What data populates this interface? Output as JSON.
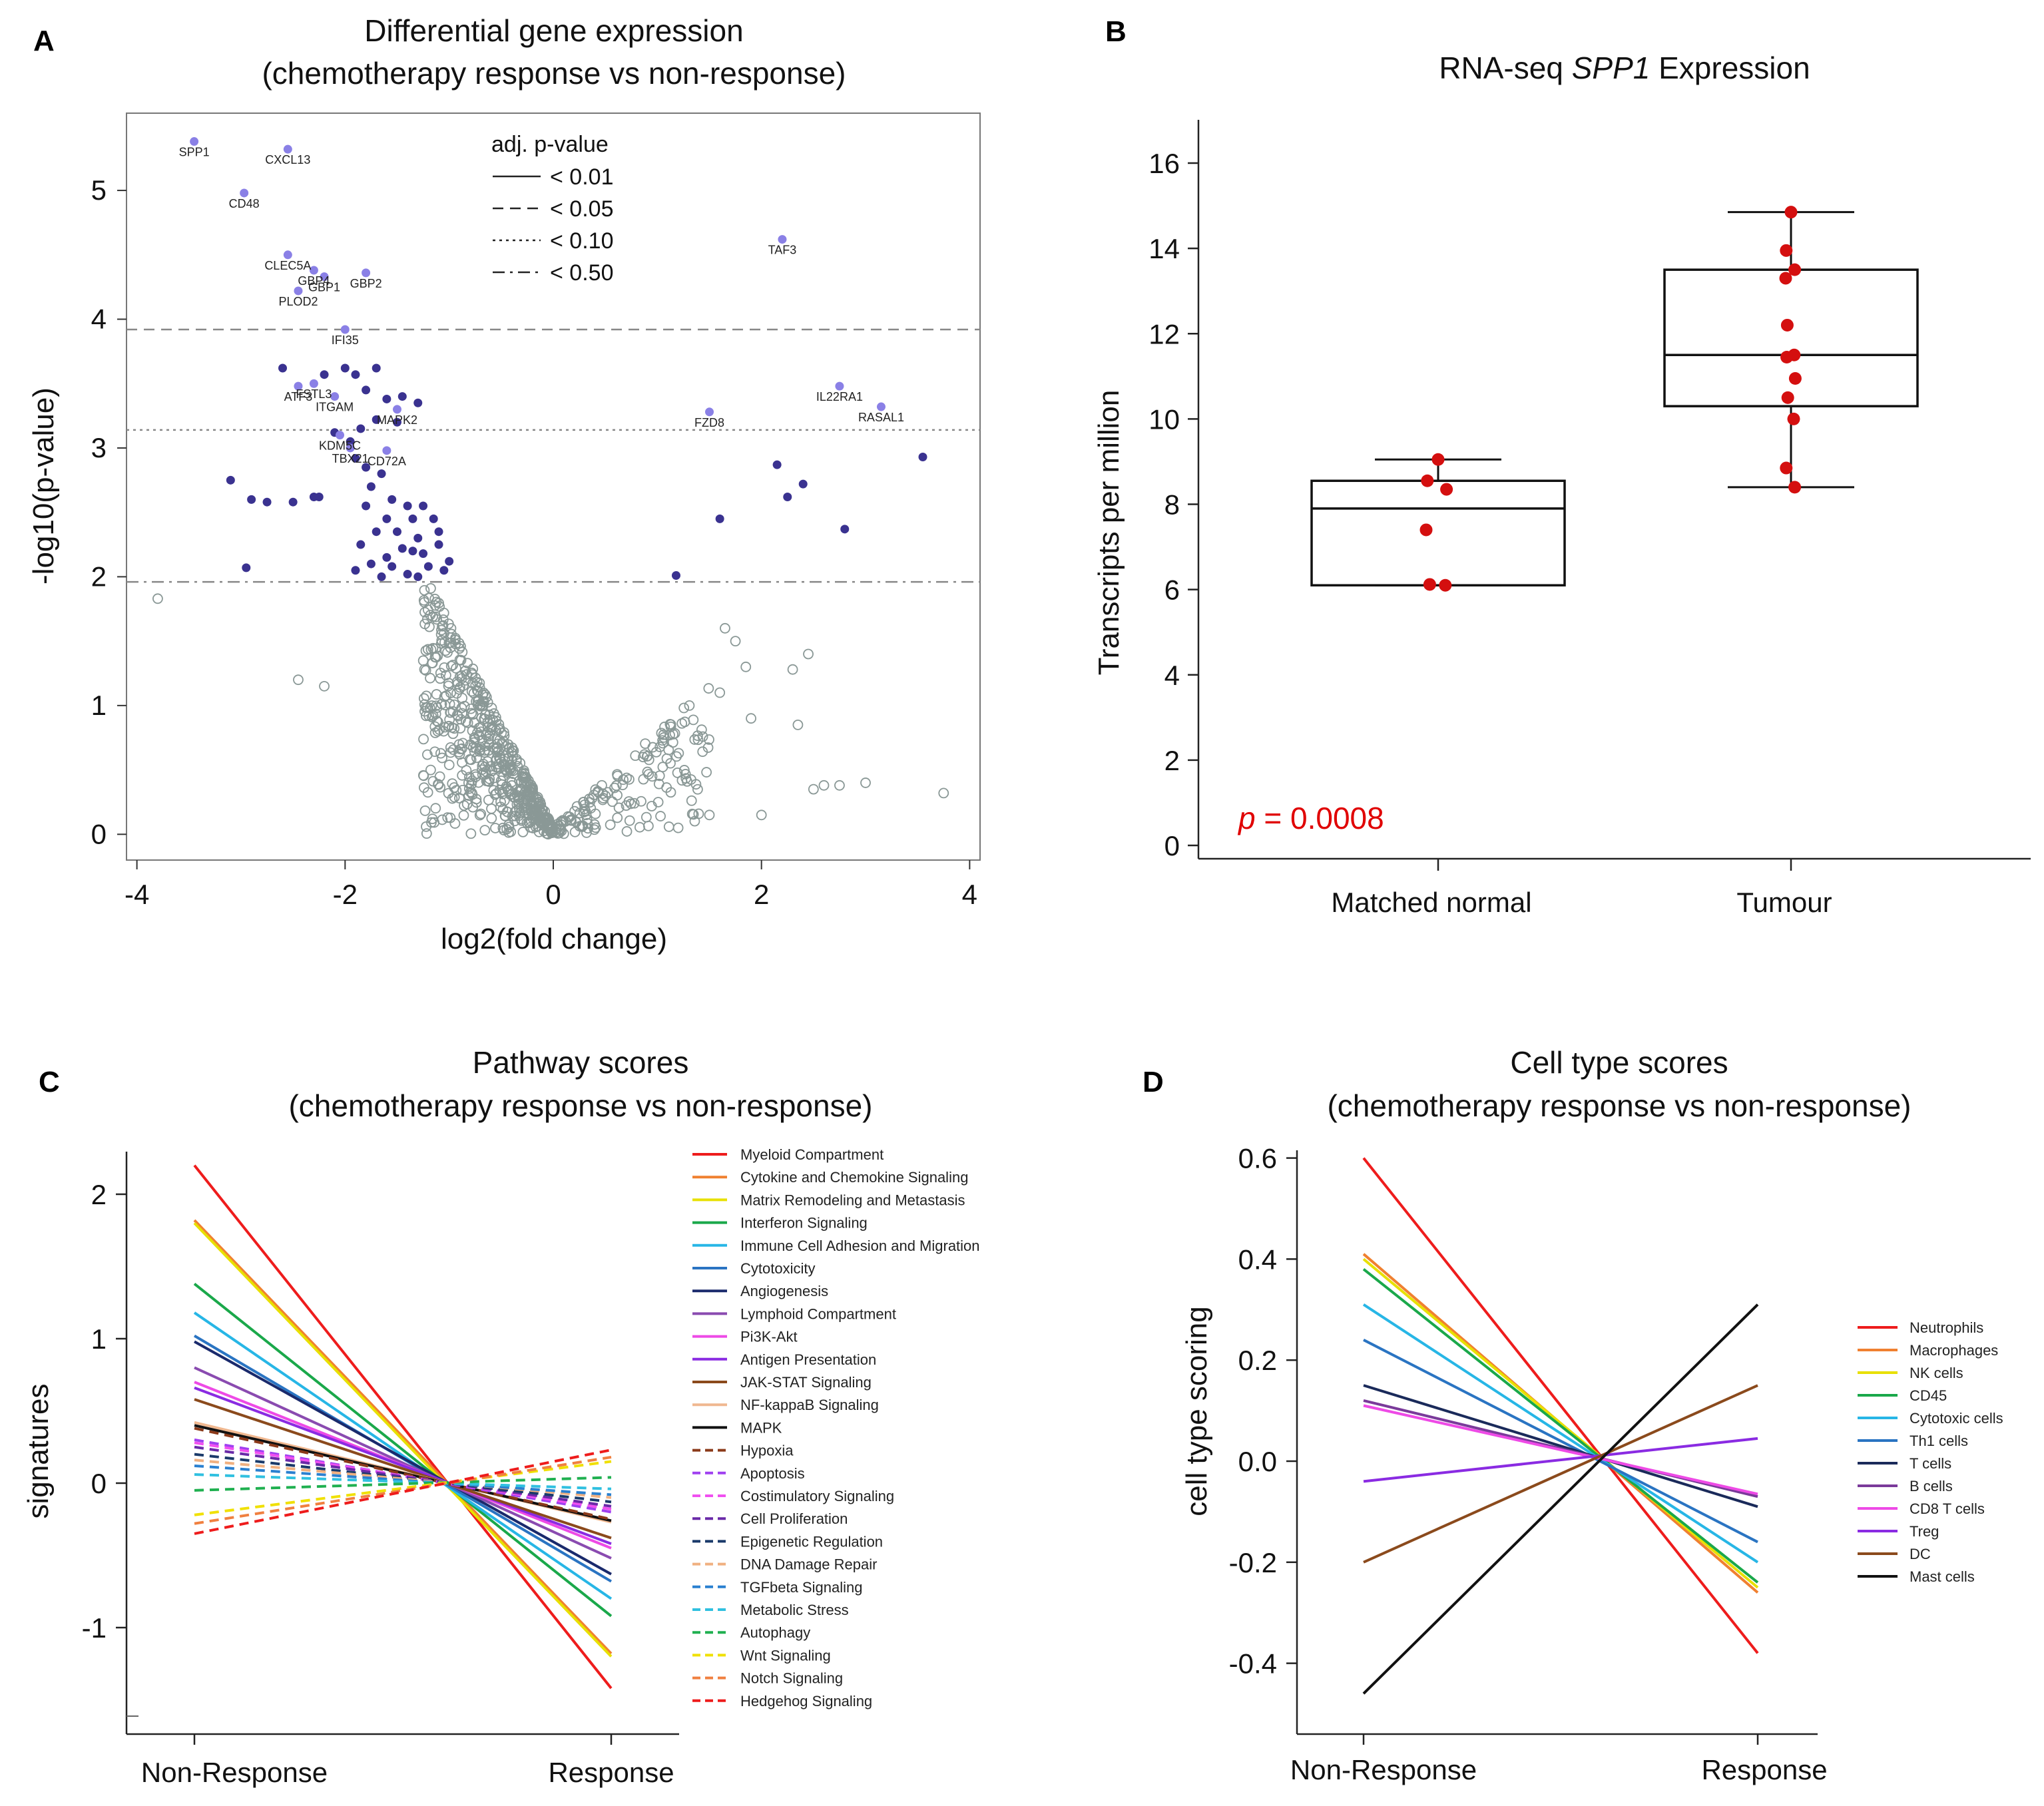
{
  "colors": {
    "sig_point": "#3a3290",
    "label_point": "#8a80e6",
    "nonsig_point": "#8a9896",
    "box_dot": "#d40f0f",
    "pvalue_text": "#e00000"
  },
  "chart_data": [
    {
      "id": "A",
      "type": "scatter",
      "panel_letter": "A",
      "title": "Differential gene expression",
      "subtitle": "(chemotherapy  response vs non-response)",
      "xlabel": "log2(fold change)",
      "ylabel": "-log10(p-value)",
      "xlim": [
        -4.1,
        4.1
      ],
      "ylim": [
        -0.2,
        5.6
      ],
      "xticks": [
        -4,
        -2,
        0,
        2,
        4
      ],
      "yticks": [
        0,
        1,
        2,
        3,
        4,
        5
      ],
      "legend_title": "adj. p-value",
      "thresholds": [
        {
          "label": "< 0.01",
          "y": null,
          "dash": "solid"
        },
        {
          "label": "< 0.05",
          "y": 3.92,
          "dash": "dashed"
        },
        {
          "label": "< 0.10",
          "y": 3.14,
          "dash": "dotted"
        },
        {
          "label": "< 0.50",
          "y": 1.96,
          "dash": "dashdot"
        }
      ],
      "labeled_genes": [
        {
          "name": "SPP1",
          "x": -3.45,
          "y": 5.38
        },
        {
          "name": "CXCL13",
          "x": -2.55,
          "y": 5.32
        },
        {
          "name": "CD48",
          "x": -2.97,
          "y": 4.98
        },
        {
          "name": "TAF3",
          "x": 2.2,
          "y": 4.62
        },
        {
          "name": "CLEC5A",
          "x": -2.55,
          "y": 4.5
        },
        {
          "name": "GBP4",
          "x": -2.3,
          "y": 4.38
        },
        {
          "name": "GBP1",
          "x": -2.2,
          "y": 4.33
        },
        {
          "name": "GBP2",
          "x": -1.8,
          "y": 4.36
        },
        {
          "name": "PLOD2",
          "x": -2.45,
          "y": 4.22
        },
        {
          "name": "IFI35",
          "x": -2.0,
          "y": 3.92
        },
        {
          "name": "ATF3",
          "x": -2.45,
          "y": 3.48
        },
        {
          "name": "FSTL3",
          "x": -2.3,
          "y": 3.5
        },
        {
          "name": "ITGAM",
          "x": -2.1,
          "y": 3.4
        },
        {
          "name": "MAPK2",
          "x": -1.5,
          "y": 3.3
        },
        {
          "name": "IL22RA1",
          "x": 2.75,
          "y": 3.48
        },
        {
          "name": "RASAL1",
          "x": 3.15,
          "y": 3.32
        },
        {
          "name": "FZD8",
          "x": 1.5,
          "y": 3.28
        },
        {
          "name": "KDM5C",
          "x": -2.05,
          "y": 3.1
        },
        {
          "name": "TBX21",
          "x": -1.95,
          "y": 3.0
        },
        {
          "name": "CD72A",
          "x": -1.6,
          "y": 2.98
        }
      ],
      "significant_points": [
        {
          "x": -3.1,
          "y": 2.75
        },
        {
          "x": -2.9,
          "y": 2.6
        },
        {
          "x": -2.75,
          "y": 2.58
        },
        {
          "x": -2.5,
          "y": 2.58
        },
        {
          "x": -2.3,
          "y": 2.62
        },
        {
          "x": -2.25,
          "y": 2.62
        },
        {
          "x": -2.95,
          "y": 2.07
        },
        {
          "x": -2.6,
          "y": 3.62
        },
        {
          "x": -2.2,
          "y": 3.57
        },
        {
          "x": -2.0,
          "y": 3.62
        },
        {
          "x": -1.9,
          "y": 3.57
        },
        {
          "x": -1.7,
          "y": 3.62
        },
        {
          "x": -1.8,
          "y": 3.45
        },
        {
          "x": -1.6,
          "y": 3.38
        },
        {
          "x": -1.45,
          "y": 3.4
        },
        {
          "x": -1.3,
          "y": 3.35
        },
        {
          "x": -1.7,
          "y": 3.22
        },
        {
          "x": -1.5,
          "y": 3.2
        },
        {
          "x": -1.9,
          "y": 2.92
        },
        {
          "x": -1.8,
          "y": 2.85
        },
        {
          "x": -1.65,
          "y": 2.8
        },
        {
          "x": -1.75,
          "y": 2.7
        },
        {
          "x": -1.55,
          "y": 2.6
        },
        {
          "x": -1.4,
          "y": 2.55
        },
        {
          "x": -1.25,
          "y": 2.55
        },
        {
          "x": -1.8,
          "y": 2.55
        },
        {
          "x": -1.6,
          "y": 2.45
        },
        {
          "x": -1.35,
          "y": 2.45
        },
        {
          "x": -1.15,
          "y": 2.45
        },
        {
          "x": -1.7,
          "y": 2.35
        },
        {
          "x": -1.5,
          "y": 2.35
        },
        {
          "x": -1.3,
          "y": 2.3
        },
        {
          "x": -1.1,
          "y": 2.35
        },
        {
          "x": -1.85,
          "y": 2.25
        },
        {
          "x": -1.45,
          "y": 2.22
        },
        {
          "x": -1.35,
          "y": 2.2
        },
        {
          "x": -1.25,
          "y": 2.18
        },
        {
          "x": -1.6,
          "y": 2.15
        },
        {
          "x": -1.75,
          "y": 2.1
        },
        {
          "x": -1.55,
          "y": 2.08
        },
        {
          "x": -1.2,
          "y": 2.08
        },
        {
          "x": -1.05,
          "y": 2.05
        },
        {
          "x": -1.9,
          "y": 2.05
        },
        {
          "x": -1.4,
          "y": 2.02
        },
        {
          "x": -1.65,
          "y": 2.0
        },
        {
          "x": -1.3,
          "y": 2.0
        },
        {
          "x": -1.0,
          "y": 2.12
        },
        {
          "x": -1.1,
          "y": 2.25
        },
        {
          "x": -1.95,
          "y": 3.05
        },
        {
          "x": -2.1,
          "y": 3.12
        },
        {
          "x": -1.85,
          "y": 3.15
        },
        {
          "x": 2.15,
          "y": 2.87
        },
        {
          "x": 2.25,
          "y": 2.62
        },
        {
          "x": 2.4,
          "y": 2.72
        },
        {
          "x": 3.55,
          "y": 2.93
        },
        {
          "x": 2.8,
          "y": 2.37
        },
        {
          "x": 1.6,
          "y": 2.45
        },
        {
          "x": 1.18,
          "y": 2.01
        }
      ],
      "nonsignificant_summary": "Grey open circles form the volcano base from (-1.2, 1.9) down to (0, 0) and up to (1.5, 1.1); outliers at (-3.8, 1.83), (-2.45, 1.2), (3.75, 0.32)"
    },
    {
      "id": "B",
      "type": "box",
      "panel_letter": "B",
      "title_prefix": "RNA-seq ",
      "title_gene": "SPP1",
      "title_suffix": " Expression",
      "ylabel": "Transcripts per million",
      "ylim": [
        0,
        16.5
      ],
      "yticks": [
        0,
        2,
        4,
        6,
        8,
        10,
        12,
        14,
        16
      ],
      "categories": [
        "Matched normal",
        "Tumour"
      ],
      "boxes": [
        {
          "name": "Matched normal",
          "min": 6.1,
          "q1": 6.1,
          "median": 7.9,
          "q3": 8.55,
          "max": 9.05,
          "points": [
            9.05,
            8.55,
            8.35,
            7.4,
            6.12,
            6.1
          ]
        },
        {
          "name": "Tumour",
          "min": 8.4,
          "q1": 10.3,
          "median": 11.5,
          "q3": 13.5,
          "max": 14.85,
          "points": [
            14.85,
            13.95,
            13.5,
            13.3,
            12.2,
            11.5,
            11.45,
            10.95,
            10.5,
            10.0,
            8.85,
            8.4
          ]
        }
      ],
      "pvalue_label": "p",
      "pvalue_text": " = 0.0008"
    },
    {
      "id": "C",
      "type": "line",
      "panel_letter": "C",
      "title": "Pathway scores",
      "subtitle": "(chemotherapy  response vs non-response)",
      "ylabel": "signatures",
      "categories": [
        "Non-Response",
        "Response"
      ],
      "ylim": [
        -1.65,
        2.3
      ],
      "yticks": [
        -1,
        0,
        1,
        2
      ],
      "series": [
        {
          "name": "Myeloid Compartment",
          "color": "#ee1c1c",
          "dash": "solid",
          "values": [
            2.2,
            -1.42
          ]
        },
        {
          "name": "Cytokine and Chemokine Signaling",
          "color": "#f08030",
          "dash": "solid",
          "values": [
            1.82,
            -1.18
          ]
        },
        {
          "name": "Matrix Remodeling and Metastasis",
          "color": "#e8e000",
          "dash": "solid",
          "values": [
            1.8,
            -1.2
          ]
        },
        {
          "name": "Interferon Signaling",
          "color": "#1aa84a",
          "dash": "solid",
          "values": [
            1.38,
            -0.92
          ]
        },
        {
          "name": "Immune Cell Adhesion and Migration",
          "color": "#27b6e6",
          "dash": "solid",
          "values": [
            1.18,
            -0.8
          ]
        },
        {
          "name": "Cytotoxicity",
          "color": "#2a74c2",
          "dash": "solid",
          "values": [
            1.02,
            -0.68
          ]
        },
        {
          "name": "Angiogenesis",
          "color": "#1a2a6c",
          "dash": "solid",
          "values": [
            0.98,
            -0.63
          ]
        },
        {
          "name": "Lymphoid Compartment",
          "color": "#8a4bb0",
          "dash": "solid",
          "values": [
            0.8,
            -0.52
          ]
        },
        {
          "name": "Pi3K-Akt",
          "color": "#ee4ae6",
          "dash": "solid",
          "values": [
            0.7,
            -0.45
          ]
        },
        {
          "name": "Antigen Presentation",
          "color": "#8a2be2",
          "dash": "solid",
          "values": [
            0.66,
            -0.42
          ]
        },
        {
          "name": "JAK-STAT Signaling",
          "color": "#8b4a1c",
          "dash": "solid",
          "values": [
            0.58,
            -0.38
          ]
        },
        {
          "name": "NF-kappaB Signaling",
          "color": "#f0b890",
          "dash": "solid",
          "values": [
            0.42,
            -0.27
          ]
        },
        {
          "name": "MAPK",
          "color": "#111111",
          "dash": "solid",
          "values": [
            0.4,
            -0.26
          ]
        },
        {
          "name": "Hypoxia",
          "color": "#8b3a1a",
          "dash": "dashed",
          "values": [
            0.38,
            -0.25
          ]
        },
        {
          "name": "Apoptosis",
          "color": "#a040f0",
          "dash": "dashed",
          "values": [
            0.3,
            -0.2
          ]
        },
        {
          "name": "Costimulatory Signaling",
          "color": "#f050f0",
          "dash": "dashed",
          "values": [
            0.28,
            -0.18
          ]
        },
        {
          "name": "Cell Proliferation",
          "color": "#6a2aa8",
          "dash": "dashed",
          "values": [
            0.25,
            -0.16
          ]
        },
        {
          "name": "Epigenetic Regulation",
          "color": "#1a3a6a",
          "dash": "dashed",
          "values": [
            0.2,
            -0.13
          ]
        },
        {
          "name": "DNA Damage Repair",
          "color": "#f0b080",
          "dash": "dashed",
          "values": [
            0.16,
            -0.1
          ]
        },
        {
          "name": "TGFbeta Signaling",
          "color": "#2a80d0",
          "dash": "dashed",
          "values": [
            0.12,
            -0.08
          ]
        },
        {
          "name": "Metabolic Stress",
          "color": "#30c0e0",
          "dash": "dashed",
          "values": [
            0.06,
            -0.04
          ]
        },
        {
          "name": "Autophagy",
          "color": "#20b050",
          "dash": "dashed",
          "values": [
            -0.05,
            0.04
          ]
        },
        {
          "name": "Wnt Signaling",
          "color": "#f0e000",
          "dash": "dashed",
          "values": [
            -0.22,
            0.15
          ]
        },
        {
          "name": "Notch Signaling",
          "color": "#f08040",
          "dash": "dashed",
          "values": [
            -0.28,
            0.18
          ]
        },
        {
          "name": "Hedgehog Signaling",
          "color": "#ee1c1c",
          "dash": "dashed",
          "values": [
            -0.35,
            0.23
          ]
        }
      ]
    },
    {
      "id": "D",
      "type": "line",
      "panel_letter": "D",
      "title": "Cell type scores",
      "subtitle": "(chemotherapy  response vs non-response)",
      "ylabel": "cell type scoring",
      "categories": [
        "Non-Response",
        "Response"
      ],
      "ylim": [
        -0.53,
        0.64
      ],
      "yticks": [
        -0.4,
        -0.2,
        0.0,
        0.2,
        0.4,
        0.6
      ],
      "ytick_labels": [
        "-0.4",
        "-0.2",
        "0.0",
        "0.2",
        "0.4",
        "0.6"
      ],
      "series": [
        {
          "name": "Neutrophils",
          "color": "#ee1c1c",
          "values": [
            0.6,
            -0.38
          ]
        },
        {
          "name": "Macrophages",
          "color": "#f08030",
          "values": [
            0.41,
            -0.26
          ]
        },
        {
          "name": "NK cells",
          "color": "#e8e000",
          "values": [
            0.4,
            -0.25
          ]
        },
        {
          "name": "CD45",
          "color": "#1aa84a",
          "values": [
            0.38,
            -0.24
          ]
        },
        {
          "name": "Cytotoxic cells",
          "color": "#27b6e6",
          "values": [
            0.31,
            -0.2
          ]
        },
        {
          "name": "Th1 cells",
          "color": "#2a74c2",
          "values": [
            0.24,
            -0.16
          ]
        },
        {
          "name": "T cells",
          "color": "#1a2a5a",
          "values": [
            0.15,
            -0.09
          ]
        },
        {
          "name": "B cells",
          "color": "#7a3a9a",
          "values": [
            0.12,
            -0.07
          ]
        },
        {
          "name": "CD8 T cells",
          "color": "#ee4ae6",
          "values": [
            0.11,
            -0.065
          ]
        },
        {
          "name": "Treg",
          "color": "#8a2be2",
          "values": [
            -0.04,
            0.045
          ]
        },
        {
          "name": "DC",
          "color": "#8b4a1c",
          "values": [
            -0.2,
            0.15
          ]
        },
        {
          "name": "Mast cells",
          "color": "#111111",
          "values": [
            -0.46,
            0.31
          ]
        }
      ]
    }
  ]
}
